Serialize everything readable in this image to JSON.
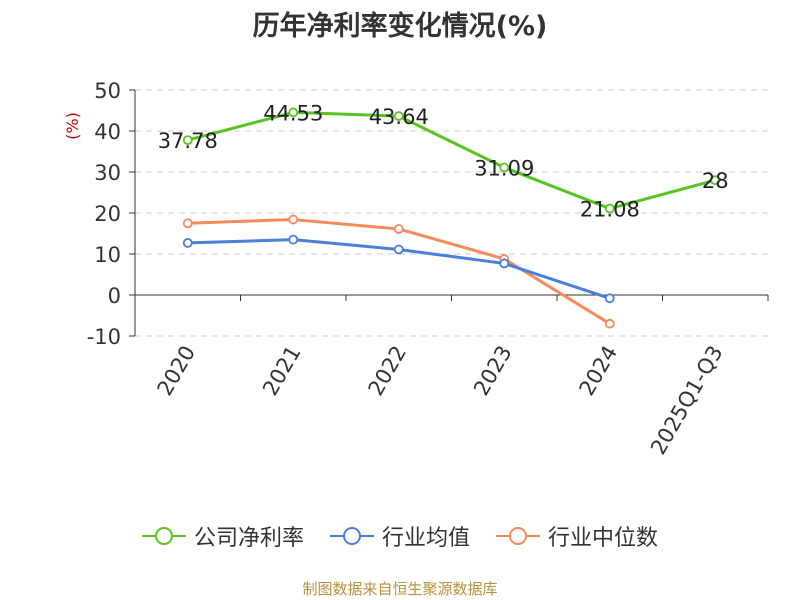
{
  "chart_data": {
    "type": "line",
    "title": "历年净利率变化情况(%)",
    "ylabel": "(%)",
    "xlabel": "",
    "categories": [
      "2020",
      "2021",
      "2022",
      "2023",
      "2024",
      "2025Q1-Q3"
    ],
    "ylim": [
      -10,
      50
    ],
    "yticks": [
      50,
      40,
      30,
      20,
      10,
      0,
      -10
    ],
    "grid": true,
    "legend_position": "bottom",
    "series": [
      {
        "name": "公司净利率",
        "color": "#5ac324",
        "values": [
          37.78,
          44.53,
          43.64,
          31.09,
          21.08,
          28
        ],
        "labels": [
          "37.78",
          "44.53",
          "43.64",
          "31.09",
          "21.08",
          "28"
        ]
      },
      {
        "name": "行业均值",
        "color": "#4a7fdb",
        "values": [
          12.7,
          13.5,
          11.1,
          7.7,
          -0.8,
          null
        ]
      },
      {
        "name": "行业中位数",
        "color": "#f58a5a",
        "values": [
          17.5,
          18.4,
          16.1,
          8.8,
          -7.0,
          null
        ]
      }
    ]
  },
  "footer": {
    "source": "制图数据来自恒生聚源数据库"
  },
  "colors": {
    "axis": "#333333",
    "grid": "#cccccc",
    "ylabel": "#cc0000"
  }
}
